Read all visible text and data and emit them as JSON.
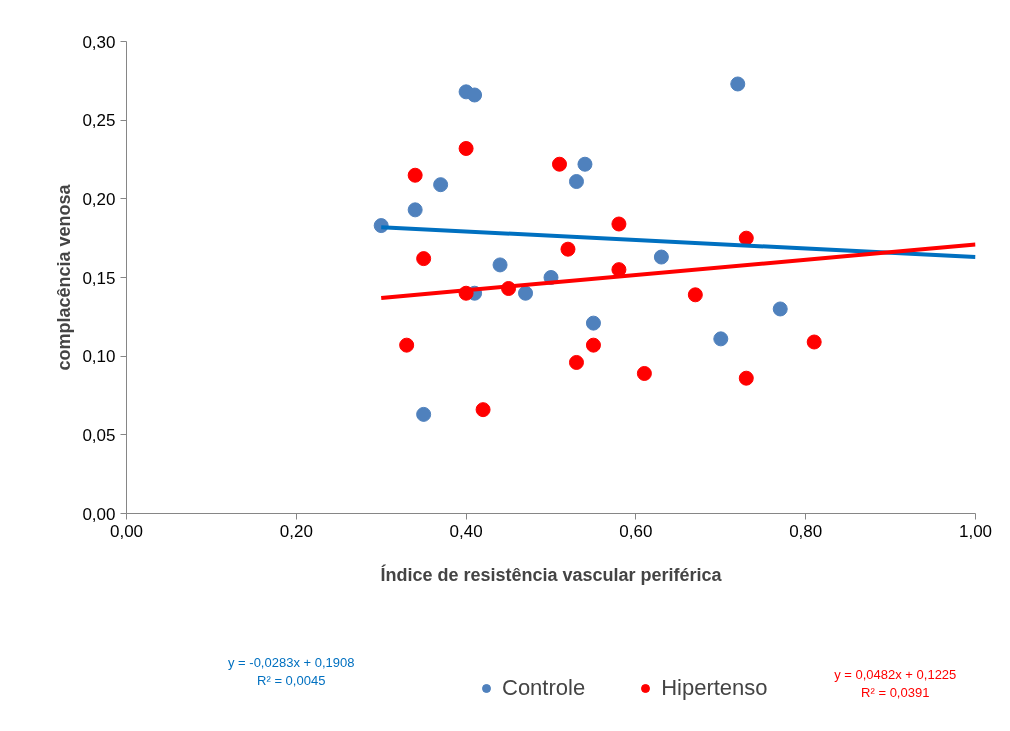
{
  "chart_data": {
    "type": "scatter",
    "xlabel": "Índice de resistência vascular periférica",
    "ylabel": "complacência venosa",
    "xlim": [
      0,
      1
    ],
    "ylim": [
      0,
      0.3
    ],
    "xticks": [
      {
        "value": 0,
        "label": "0,00"
      },
      {
        "value": 0.2,
        "label": "0,20"
      },
      {
        "value": 0.4,
        "label": "0,40"
      },
      {
        "value": 0.6,
        "label": "0,60"
      },
      {
        "value": 0.8,
        "label": "0,80"
      },
      {
        "value": 1,
        "label": "1,00"
      }
    ],
    "yticks": [
      {
        "value": 0,
        "label": "0,00"
      },
      {
        "value": 0.05,
        "label": "0,05"
      },
      {
        "value": 0.1,
        "label": "0,10"
      },
      {
        "value": 0.15,
        "label": "0,15"
      },
      {
        "value": 0.2,
        "label": "0,20"
      },
      {
        "value": 0.25,
        "label": "0,25"
      },
      {
        "value": 0.3,
        "label": "0,30"
      }
    ],
    "grid": false,
    "legend": "bottom",
    "marker": "circle",
    "series": [
      {
        "name": "Controle",
        "color": "#4f81bd",
        "x": [
          0.3,
          0.34,
          0.35,
          0.37,
          0.4,
          0.41,
          0.41,
          0.44,
          0.47,
          0.5,
          0.53,
          0.54,
          0.55,
          0.63,
          0.7,
          0.72,
          0.77
        ],
        "values": [
          0.183,
          0.193,
          0.063,
          0.209,
          0.268,
          0.266,
          0.14,
          0.158,
          0.14,
          0.15,
          0.211,
          0.222,
          0.121,
          0.163,
          0.111,
          0.273,
          0.13
        ]
      },
      {
        "name": "Hipertenso",
        "color": "#ff0000",
        "x": [
          0.33,
          0.34,
          0.35,
          0.4,
          0.4,
          0.42,
          0.45,
          0.51,
          0.52,
          0.53,
          0.55,
          0.58,
          0.58,
          0.61,
          0.67,
          0.73,
          0.73,
          0.81
        ],
        "values": [
          0.107,
          0.215,
          0.162,
          0.232,
          0.14,
          0.066,
          0.143,
          0.222,
          0.168,
          0.096,
          0.107,
          0.184,
          0.155,
          0.089,
          0.139,
          0.175,
          0.086,
          0.109
        ]
      },
      {
        "type": "line",
        "marker": "none",
        "color": "#0070c0",
        "x": [
          0.3,
          1.0
        ],
        "values": [
          0.182,
          0.163
        ]
      },
      {
        "type": "line",
        "marker": "none",
        "color": "#ff0000",
        "x": [
          0.3,
          1.0
        ],
        "values": [
          0.137,
          0.171
        ]
      }
    ],
    "annotations": [
      "y = -0,0283x + 0,1908\nR² = 0,0045",
      "y = 0,0482x + 0,1225\nR² = 0,0391"
    ]
  }
}
